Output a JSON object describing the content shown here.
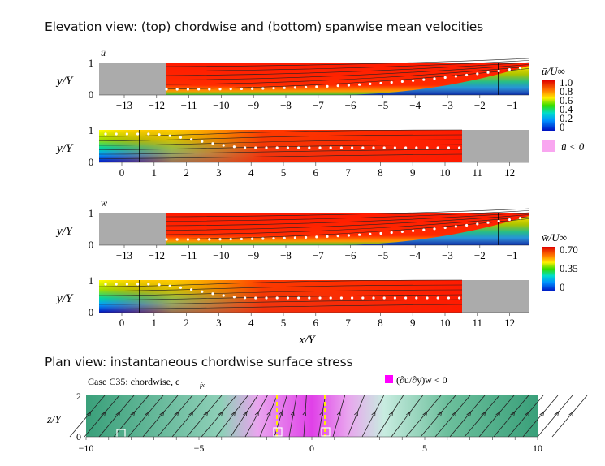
{
  "headings": {
    "elevation": "Elevation view: (top) chordwise and (bottom) spanwise mean velocities",
    "plan": "Plan view: instantaneous chordwise surface stress"
  },
  "elevation": {
    "ylabel": "y/Y",
    "xlabel": "x/Y",
    "y_ticks": [
      "0",
      "1"
    ],
    "u_panel_label": "ū",
    "w_panel_label": "w̄",
    "top_x_ticks": [
      "−13",
      "−12",
      "−11",
      "−10",
      "−9",
      "−8",
      "−7",
      "−6",
      "−5",
      "−4",
      "−3",
      "−2",
      "−1"
    ],
    "bottom_x_ticks": [
      "0",
      "1",
      "2",
      "3",
      "4",
      "5",
      "6",
      "7",
      "8",
      "9",
      "10",
      "11",
      "12"
    ],
    "u_colorbar": {
      "title": "ū/U∞",
      "labels": [
        "1.0",
        "0.8",
        "0.6",
        "0.4",
        "0.2",
        "0"
      ],
      "negative_label": "ū < 0",
      "negative_color": "#f9a6f0"
    },
    "w_colorbar": {
      "title": "w̄/U∞",
      "labels": [
        "0.70",
        "0.35",
        "0"
      ]
    },
    "colors": {
      "masked": "#ababab",
      "high": "#ff1a00",
      "low": "#0022cc"
    }
  },
  "plan": {
    "case_label": "Case C35: chordwise, c",
    "case_subscript": "fx",
    "legend_label": "(∂u/∂y)w < 0",
    "legend_color": "#ff00ff",
    "ylabel": "z/Y",
    "y_ticks": [
      "0",
      "2"
    ],
    "x_ticks": [
      "−10",
      "−5",
      "0",
      "5",
      "10"
    ],
    "surface_color": "#3aa07a"
  }
}
